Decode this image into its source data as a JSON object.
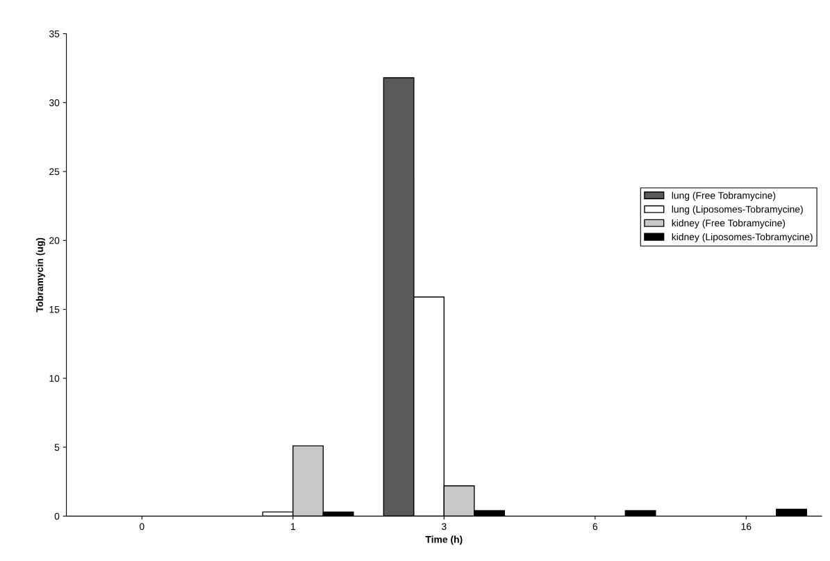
{
  "chart_data": {
    "type": "bar",
    "xlabel": "Time (h)",
    "ylabel": "Tobramycin (ug)",
    "categories": [
      "0",
      "1",
      "3",
      "6",
      "16"
    ],
    "series": [
      {
        "name": "lung (Free Tobramycine)",
        "color": "#5a5a5a",
        "values": [
          null,
          null,
          31.8,
          null,
          null
        ]
      },
      {
        "name": "lung (Liposomes-Tobramycine)",
        "color": "#ffffff",
        "values": [
          null,
          0.3,
          15.9,
          null,
          null
        ]
      },
      {
        "name": "kidney (Free Tobramycine)",
        "color": "#c8c8c8",
        "values": [
          null,
          5.1,
          2.2,
          null,
          null
        ]
      },
      {
        "name": "kidney (Liposomes-Tobramycine)",
        "color": "#000000",
        "values": [
          null,
          0.3,
          0.4,
          0.4,
          0.5
        ]
      }
    ],
    "ylim": [
      0,
      35
    ],
    "yticks": [
      0,
      5,
      10,
      15,
      20,
      25,
      30,
      35
    ],
    "grid": false,
    "legend": "right"
  }
}
